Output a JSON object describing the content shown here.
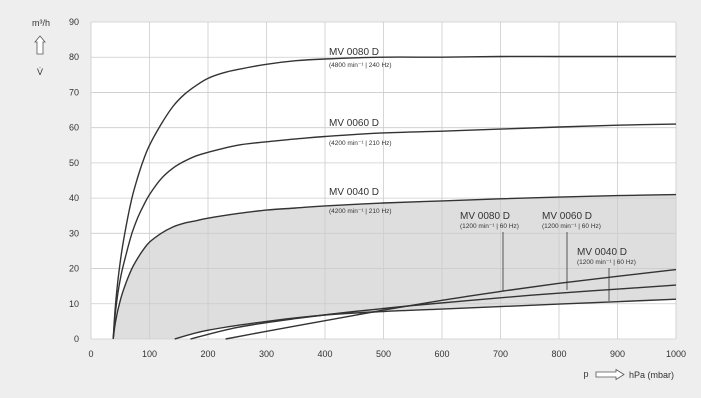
{
  "chart_data": {
    "type": "line",
    "ylabel_unit": "m³/h",
    "ylabel_symbol": "V̇",
    "xlabel_symbol": "p",
    "xlabel_unit": "hPa (mbar)",
    "xlim": [
      0,
      1000
    ],
    "ylim": [
      0,
      90
    ],
    "x_ticks": [
      0,
      100,
      200,
      300,
      400,
      500,
      600,
      700,
      800,
      900,
      1000
    ],
    "y_ticks": [
      0,
      10,
      20,
      30,
      40,
      50,
      60,
      70,
      80,
      90
    ],
    "grid": true,
    "colors": {
      "panel": "#ffffff",
      "page": "#eeeeee",
      "grid": "#cccccc",
      "curve": "#333333",
      "fill": "#dedede"
    },
    "series": [
      {
        "name": "MV 0080 D",
        "condition": "(4800 min⁻¹ | 240 Hz)",
        "x": [
          38,
          42,
          50,
          60,
          70,
          80,
          90,
          100,
          120,
          140,
          160,
          180,
          200,
          225,
          250,
          300,
          350,
          400,
          500,
          600,
          700,
          800,
          900,
          1000
        ],
        "y": [
          0,
          10,
          22,
          32,
          40,
          46,
          51,
          55,
          61,
          66,
          69.5,
          72,
          74,
          75.5,
          76.5,
          78,
          79,
          79.5,
          80,
          80,
          80.2,
          80.2,
          80.2,
          80.2
        ]
      },
      {
        "name": "MV 0060 D",
        "condition": "(4200 min⁻¹ | 210 Hz)",
        "x": [
          38,
          42,
          50,
          60,
          70,
          80,
          90,
          100,
          120,
          140,
          160,
          180,
          200,
          250,
          300,
          350,
          400,
          500,
          600,
          700,
          800,
          900,
          1000
        ],
        "y": [
          0,
          8,
          17,
          24,
          30,
          34.5,
          38,
          41,
          45.5,
          48.5,
          50.5,
          52,
          53,
          55,
          56,
          56.8,
          57.5,
          58.5,
          59,
          59.6,
          60.2,
          60.7,
          61
        ]
      },
      {
        "name": "MV 0040 D",
        "condition": "(4200 min⁻¹ | 210 Hz)",
        "x": [
          38,
          42,
          50,
          60,
          70,
          80,
          90,
          100,
          120,
          140,
          160,
          180,
          200,
          250,
          300,
          350,
          400,
          500,
          600,
          700,
          800,
          900,
          1000
        ],
        "y": [
          0,
          5,
          11,
          16,
          20,
          23,
          25.5,
          27.5,
          30,
          31.8,
          32.9,
          33.6,
          34.3,
          35.6,
          36.6,
          37.2,
          37.8,
          38.6,
          39.2,
          39.8,
          40.3,
          40.7,
          41
        ]
      },
      {
        "name": "MV 0080 D",
        "condition": "(1200 min⁻¹ | 60 Hz)",
        "x": [
          230,
          300,
          400,
          500,
          600,
          700,
          800,
          900,
          1000
        ],
        "y": [
          0,
          2.2,
          5.2,
          8.2,
          11,
          13.5,
          15.8,
          17.8,
          19.7
        ]
      },
      {
        "name": "MV 0060 D",
        "condition": "(1200 min⁻¹ | 60 Hz)",
        "x": [
          170,
          250,
          350,
          450,
          550,
          650,
          750,
          850,
          1000
        ],
        "y": [
          0,
          3.3,
          5.8,
          7.8,
          9.5,
          11,
          12.4,
          13.6,
          15.3
        ]
      },
      {
        "name": "MV 0040 D",
        "condition": "(1200 min⁻¹ | 60 Hz)",
        "x": [
          143,
          200,
          300,
          400,
          500,
          600,
          700,
          800,
          900,
          1000
        ],
        "y": [
          0,
          2.5,
          5,
          6.8,
          7.8,
          8.5,
          9.2,
          9.9,
          10.6,
          11.3
        ]
      }
    ]
  }
}
